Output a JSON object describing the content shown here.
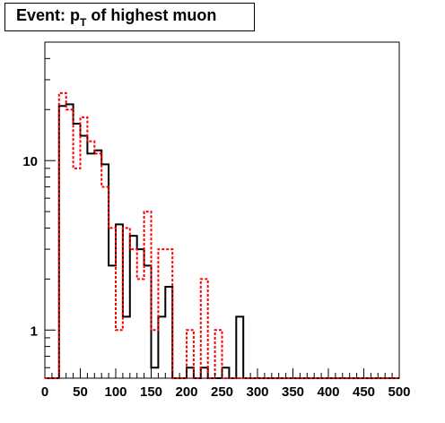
{
  "chart_data": {
    "type": "histogram",
    "title": {
      "prefix": "Event: p",
      "subscript": "T",
      "suffix": " of highest muon"
    },
    "xlim": [
      0,
      500
    ],
    "ylim": [
      0.52,
      50
    ],
    "yscale": "log",
    "grid": false,
    "x_ticks": [
      0,
      50,
      100,
      150,
      200,
      250,
      300,
      350,
      400,
      450,
      500
    ],
    "y_ticks": [
      1,
      10
    ],
    "bin_width": 10,
    "colors": {
      "axis": "#000000",
      "series_black": "#000000",
      "series_red": "#ff0000"
    },
    "series": [
      {
        "style": "solid",
        "color": "#000000",
        "x": [
          0,
          10,
          20,
          30,
          40,
          50,
          60,
          70,
          80,
          90,
          100,
          110,
          120,
          130,
          140,
          150,
          160,
          170,
          180,
          190,
          200,
          210,
          220,
          230,
          240,
          250,
          260,
          270,
          280,
          290
        ],
        "values": [
          0,
          0,
          21,
          21.5,
          16.5,
          14,
          11,
          11.5,
          9.5,
          2.4,
          4.2,
          1.2,
          3.6,
          3.0,
          2.4,
          0.6,
          1.2,
          1.8,
          0,
          0,
          0.6,
          0,
          0.6,
          0,
          0,
          0.6,
          0,
          1.2,
          0,
          0
        ]
      },
      {
        "style": "dashed",
        "color": "#ff0000",
        "x": [
          0,
          10,
          20,
          30,
          40,
          50,
          60,
          70,
          80,
          90,
          100,
          110,
          120,
          130,
          140,
          150,
          160,
          170,
          180,
          190,
          200,
          210,
          220,
          230,
          240,
          250,
          260,
          270,
          280,
          290
        ],
        "values": [
          0,
          0,
          25,
          20,
          9,
          18,
          13,
          11,
          7,
          4,
          1,
          4,
          3,
          2,
          5,
          1,
          3,
          3,
          0,
          0,
          1,
          0.5,
          2,
          0.5,
          1,
          0,
          0,
          0,
          0,
          0
        ]
      }
    ]
  }
}
